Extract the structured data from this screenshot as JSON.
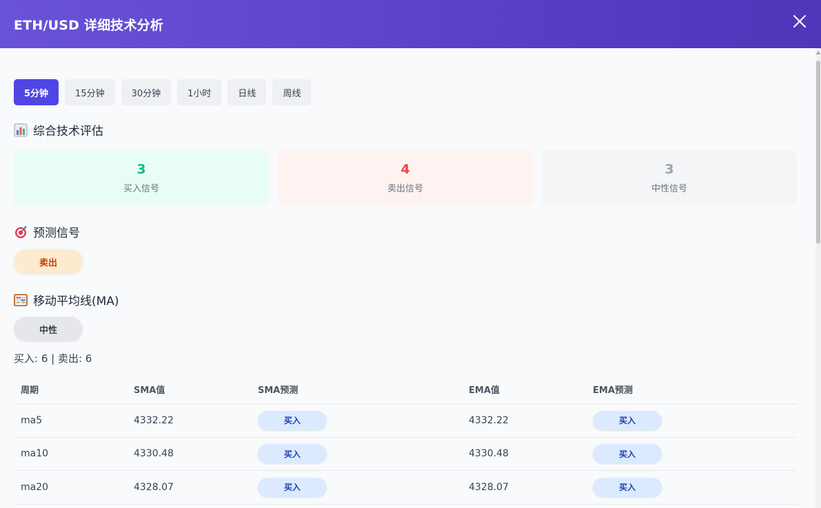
{
  "header": {
    "title": "ETH/USD 详细技术分析"
  },
  "tabs": [
    {
      "label": "5分钟",
      "active": true
    },
    {
      "label": "15分钟",
      "active": false
    },
    {
      "label": "30分钟",
      "active": false
    },
    {
      "label": "1小时",
      "active": false
    },
    {
      "label": "日线",
      "active": false
    },
    {
      "label": "周线",
      "active": false
    }
  ],
  "summary": {
    "title": "综合技术评估",
    "buy": {
      "count": "3",
      "label": "买入信号"
    },
    "sell": {
      "count": "4",
      "label": "卖出信号"
    },
    "neutral": {
      "count": "3",
      "label": "中性信号"
    }
  },
  "prediction": {
    "title": "预测信号",
    "value": "卖出"
  },
  "ma": {
    "title": "移动平均线(MA)",
    "value": "中性",
    "counts": "买入: 6 | 卖出: 6",
    "columns": [
      "周期",
      "SMA值",
      "SMA预测",
      "EMA值",
      "EMA预测"
    ],
    "rows": [
      {
        "period": "ma5",
        "sma": "4332.22",
        "sma_signal": "买入",
        "ema": "4332.22",
        "ema_signal": "买入"
      },
      {
        "period": "ma10",
        "sma": "4330.48",
        "sma_signal": "买入",
        "ema": "4330.48",
        "ema_signal": "买入"
      },
      {
        "period": "ma20",
        "sma": "4328.07",
        "sma_signal": "买入",
        "ema": "4328.07",
        "ema_signal": "买入"
      }
    ]
  },
  "colors": {
    "header_gradient_start": "#6a52d8",
    "header_gradient_end": "#4f35b8",
    "accent": "#4f46e5",
    "buy": "#10b981",
    "sell": "#ef4444",
    "neutral": "#9ca3af"
  },
  "icons": {
    "summary": "bar-chart-icon",
    "prediction": "target-icon",
    "ma": "abacus-icon",
    "close": "close-icon"
  }
}
